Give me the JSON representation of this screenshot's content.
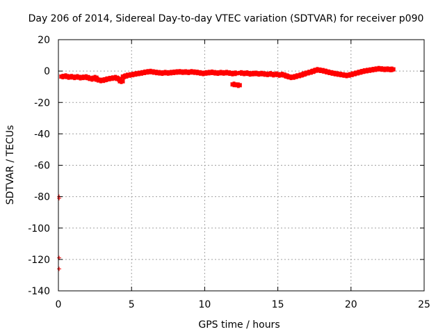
{
  "chart_data": {
    "type": "scatter",
    "title": "Day 206 of 2014, Sidereal Day-to-day VTEC variation (SDTVAR) for receiver p090",
    "xlabel": "GPS time / hours",
    "ylabel": "SDTVAR / TECUs",
    "xlim": [
      0,
      25
    ],
    "ylim": [
      -140,
      20
    ],
    "xticks": [
      0,
      5,
      10,
      15,
      20,
      25
    ],
    "yticks": [
      20,
      0,
      -20,
      -40,
      -60,
      -80,
      -100,
      -120,
      -140
    ],
    "grid": true,
    "color": "#ff0000",
    "series": [
      {
        "name": "p090",
        "points": [
          [
            0.3,
            -3.5
          ],
          [
            0.5,
            -3.2
          ],
          [
            0.7,
            -3.8
          ],
          [
            0.9,
            -3.6
          ],
          [
            1.1,
            -4.0
          ],
          [
            1.3,
            -3.7
          ],
          [
            1.5,
            -4.2
          ],
          [
            1.7,
            -4.0
          ],
          [
            1.9,
            -3.8
          ],
          [
            2.1,
            -4.5
          ],
          [
            2.3,
            -5.0
          ],
          [
            2.5,
            -4.2
          ],
          [
            2.7,
            -5.5
          ],
          [
            2.9,
            -6.0
          ],
          [
            3.1,
            -5.8
          ],
          [
            3.3,
            -5.2
          ],
          [
            3.5,
            -4.8
          ],
          [
            3.7,
            -4.5
          ],
          [
            3.9,
            -4.2
          ],
          [
            4.1,
            -5.0
          ],
          [
            4.3,
            -6.5
          ],
          [
            4.5,
            -3.5
          ],
          [
            4.7,
            -2.8
          ],
          [
            4.9,
            -2.5
          ],
          [
            5.1,
            -2.2
          ],
          [
            5.3,
            -1.8
          ],
          [
            5.5,
            -1.5
          ],
          [
            5.7,
            -1.2
          ],
          [
            5.9,
            -0.8
          ],
          [
            6.1,
            -0.5
          ],
          [
            6.3,
            -0.3
          ],
          [
            6.5,
            -0.6
          ],
          [
            6.7,
            -0.9
          ],
          [
            6.9,
            -1.1
          ],
          [
            7.1,
            -1.3
          ],
          [
            7.3,
            -1.0
          ],
          [
            7.5,
            -1.2
          ],
          [
            7.7,
            -1.0
          ],
          [
            7.9,
            -0.8
          ],
          [
            8.1,
            -0.6
          ],
          [
            8.3,
            -0.5
          ],
          [
            8.5,
            -0.7
          ],
          [
            8.7,
            -0.6
          ],
          [
            8.9,
            -0.8
          ],
          [
            9.1,
            -0.5
          ],
          [
            9.3,
            -0.7
          ],
          [
            9.5,
            -0.9
          ],
          [
            9.7,
            -1.2
          ],
          [
            9.9,
            -1.5
          ],
          [
            10.1,
            -1.2
          ],
          [
            10.3,
            -1.0
          ],
          [
            10.5,
            -0.8
          ],
          [
            10.7,
            -1.1
          ],
          [
            10.9,
            -1.3
          ],
          [
            11.1,
            -1.0
          ],
          [
            11.3,
            -1.2
          ],
          [
            11.5,
            -1.0
          ],
          [
            11.7,
            -1.3
          ],
          [
            11.9,
            -1.6
          ],
          [
            12.1,
            -1.4
          ],
          [
            12.3,
            -9.0
          ],
          [
            12.0,
            -8.5
          ],
          [
            12.5,
            -1.2
          ],
          [
            12.7,
            -1.5
          ],
          [
            12.9,
            -1.3
          ],
          [
            13.1,
            -1.8
          ],
          [
            13.3,
            -1.6
          ],
          [
            13.5,
            -1.5
          ],
          [
            13.7,
            -1.8
          ],
          [
            13.9,
            -1.6
          ],
          [
            14.1,
            -1.9
          ],
          [
            14.3,
            -2.1
          ],
          [
            14.5,
            -1.8
          ],
          [
            14.7,
            -2.3
          ],
          [
            14.9,
            -2.0
          ],
          [
            15.1,
            -2.5
          ],
          [
            15.3,
            -2.2
          ],
          [
            15.5,
            -2.8
          ],
          [
            15.7,
            -3.5
          ],
          [
            15.9,
            -4.0
          ],
          [
            16.1,
            -3.8
          ],
          [
            16.3,
            -3.2
          ],
          [
            16.5,
            -2.8
          ],
          [
            16.7,
            -2.2
          ],
          [
            16.9,
            -1.5
          ],
          [
            17.1,
            -1.0
          ],
          [
            17.3,
            -0.5
          ],
          [
            17.5,
            0.2
          ],
          [
            17.7,
            0.8
          ],
          [
            17.9,
            0.5
          ],
          [
            18.1,
            0.2
          ],
          [
            18.3,
            -0.3
          ],
          [
            18.5,
            -0.8
          ],
          [
            18.7,
            -1.2
          ],
          [
            18.9,
            -1.6
          ],
          [
            19.1,
            -1.9
          ],
          [
            19.3,
            -2.2
          ],
          [
            19.5,
            -2.5
          ],
          [
            19.7,
            -2.8
          ],
          [
            19.9,
            -2.5
          ],
          [
            20.1,
            -2.0
          ],
          [
            20.3,
            -1.5
          ],
          [
            20.5,
            -1.0
          ],
          [
            20.7,
            -0.5
          ],
          [
            20.9,
            0.0
          ],
          [
            21.1,
            0.3
          ],
          [
            21.3,
            0.6
          ],
          [
            21.5,
            0.9
          ],
          [
            21.7,
            1.2
          ],
          [
            21.9,
            1.5
          ],
          [
            22.1,
            1.3
          ],
          [
            22.3,
            1.1
          ],
          [
            22.5,
            1.2
          ],
          [
            22.7,
            1.0
          ],
          [
            22.8,
            1.1
          ]
        ]
      }
    ],
    "outliers": [
      [
        0.05,
        -80
      ],
      [
        0.05,
        -81
      ],
      [
        0.05,
        -119
      ],
      [
        0.05,
        -126
      ]
    ]
  }
}
